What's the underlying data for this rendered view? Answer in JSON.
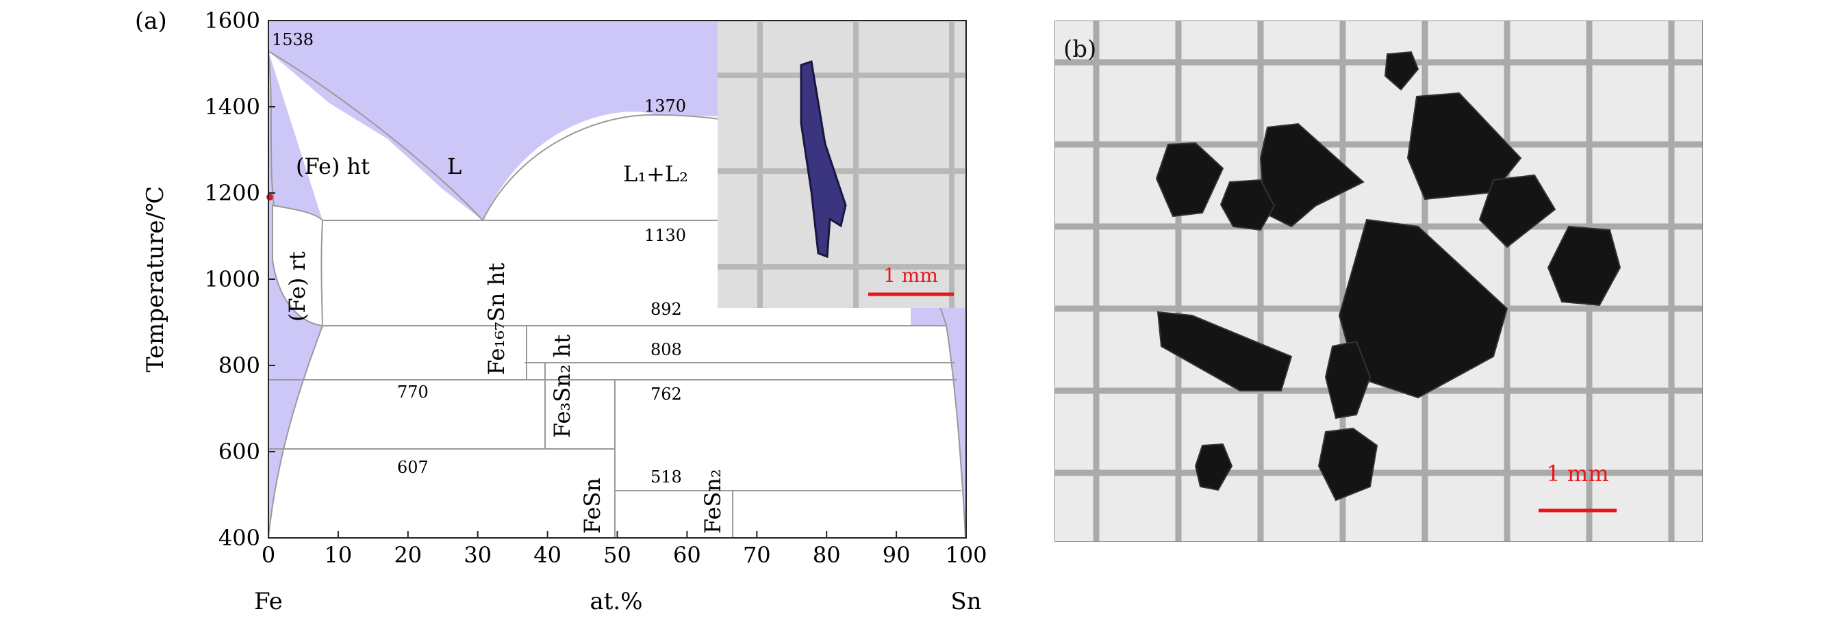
{
  "panel_a": {
    "label": "(a)",
    "chart_data": {
      "type": "phase-diagram",
      "title": "",
      "xlabel": "at.%",
      "ylabel": "Temperature/℃",
      "xlim": [
        0,
        100
      ],
      "ylim": [
        400,
        1600
      ],
      "x_ticks": [
        "0",
        "10",
        "20",
        "30",
        "40",
        "50",
        "60",
        "70",
        "80",
        "90",
        "100"
      ],
      "y_ticks": [
        "400",
        "600",
        "800",
        "1000",
        "1200",
        "1400",
        "1600"
      ],
      "x_end_labels": {
        "left": "Fe",
        "right": "Sn"
      },
      "grid": false,
      "colors": {
        "single_phase": "#ccc7f7",
        "two_phase": "#ffffff",
        "lines": "#9a9a9a"
      },
      "invariant_temperatures": [
        {
          "label": "1538",
          "x": 0,
          "y": 1538
        },
        {
          "label": "1370",
          "x": 57,
          "y": 1370
        },
        {
          "label": "1130",
          "x": 30,
          "y": 1130
        },
        {
          "label": "892",
          "x": 8,
          "y": 892
        },
        {
          "label": "808",
          "x": 45,
          "y": 808
        },
        {
          "label": "770",
          "x": 0,
          "y": 770
        },
        {
          "label": "762",
          "x": 45,
          "y": 762
        },
        {
          "label": "607",
          "x": 0,
          "y": 607
        },
        {
          "label": "518",
          "x": 50,
          "y": 518
        }
      ],
      "phase_regions": [
        {
          "name": "L",
          "sub": ""
        },
        {
          "name": "(Fe) ht",
          "sub": ""
        },
        {
          "name": "(Fe) rt",
          "sub": ""
        },
        {
          "name": "L₁+L₂",
          "sub": ""
        },
        {
          "name": "Fe₁₆₇Sn ht",
          "sub": ""
        },
        {
          "name": "Fe₃Sn₂ ht",
          "sub": ""
        },
        {
          "name": "FeSn",
          "sub": ""
        },
        {
          "name": "FeSn₂",
          "sub": ""
        }
      ],
      "compound_compositions": [
        {
          "name": "Fe₁₆₇Sn",
          "x": 37.5,
          "ymin": 762,
          "ymax": 892
        },
        {
          "name": "Fe₃Sn₂",
          "x": 40,
          "ymin": 607,
          "ymax": 808
        },
        {
          "name": "FeSn",
          "x": 50,
          "ymin": 400,
          "ymax": 762
        },
        {
          "name": "FeSn₂",
          "x": 66.7,
          "ymin": 400,
          "ymax": 518
        }
      ],
      "inset": {
        "scale_bar": "1 mm"
      }
    }
  },
  "panel_b": {
    "label": "(b)",
    "scale_bar": "1 mm"
  },
  "colors": {
    "scale_bar": "#e8161b"
  }
}
